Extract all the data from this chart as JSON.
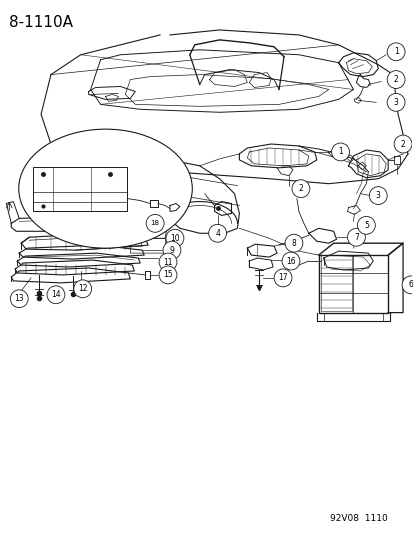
{
  "title_label": "8-1110A",
  "footer_label": "92V08  1110",
  "background_color": "#ffffff",
  "line_color": "#1a1a1a",
  "text_color": "#000000",
  "title_fontsize": 11,
  "footer_fontsize": 6.5,
  "fig_width": 4.14,
  "fig_height": 5.33,
  "dpi": 100
}
